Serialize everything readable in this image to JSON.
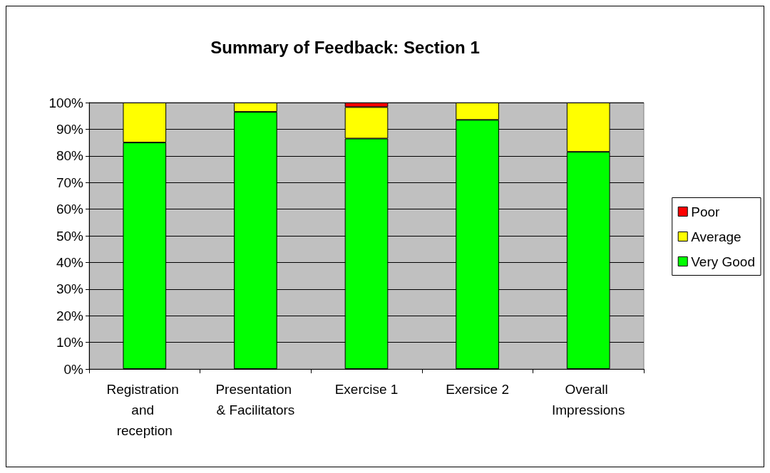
{
  "chart_data": {
    "type": "bar",
    "title": "Summary of Feedback: Section 1",
    "stacked": true,
    "categories": [
      "Registration and reception",
      "Presentation & Facilitators",
      "Exercise 1",
      "Exersice 2",
      "Overall Impressions"
    ],
    "series": [
      {
        "name": "Very Good",
        "color": "#00ff00",
        "values": [
          85,
          96.5,
          86.5,
          93.5,
          81.5
        ]
      },
      {
        "name": "Average",
        "color": "#ffff00",
        "values": [
          15,
          3.5,
          11.8,
          6.5,
          18.5
        ]
      },
      {
        "name": "Poor",
        "color": "#ff0000",
        "values": [
          0,
          0,
          1.7,
          0,
          0
        ]
      }
    ],
    "ylim": [
      0,
      100
    ],
    "yticks": [
      {
        "value": 0,
        "label": "0%"
      },
      {
        "value": 10,
        "label": "10%"
      },
      {
        "value": 20,
        "label": "20%"
      },
      {
        "value": 30,
        "label": "30%"
      },
      {
        "value": 40,
        "label": "40%"
      },
      {
        "value": 50,
        "label": "50%"
      },
      {
        "value": 60,
        "label": "60%"
      },
      {
        "value": 70,
        "label": "70%"
      },
      {
        "value": 80,
        "label": "80%"
      },
      {
        "value": 90,
        "label": "90%"
      },
      {
        "value": 100,
        "label": "100%"
      }
    ],
    "grid": "y",
    "legend": "right"
  }
}
